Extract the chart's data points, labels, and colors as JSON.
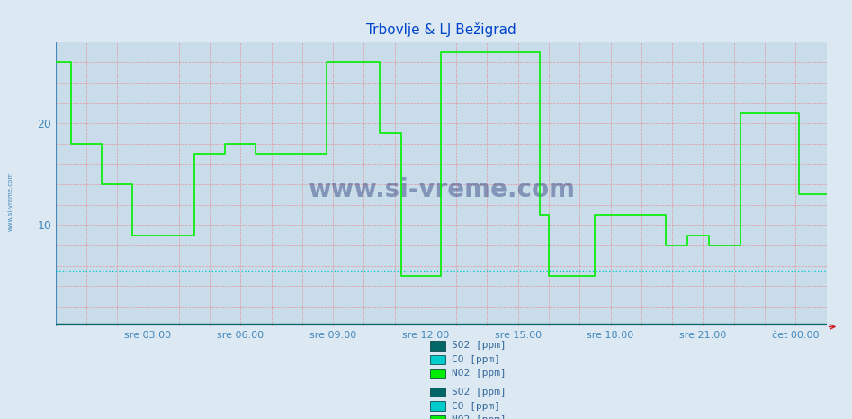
{
  "title": "Trbovlje & LJ Bežigrad",
  "title_color": "#0044cc",
  "title_fontsize": 11,
  "background_color": "#dce8f2",
  "plot_bg_color": "#c8dcea",
  "grid_color": "#ff5555",
  "ylim": [
    0,
    28
  ],
  "yticks": [
    10,
    20
  ],
  "tick_color": "#4488bb",
  "xtick_labels": [
    "sre 03:00",
    "sre 06:00",
    "sre 09:00",
    "sre 12:00",
    "sre 15:00",
    "sre 18:00",
    "sre 21:00",
    "čet 00:00"
  ],
  "xtick_positions": [
    3,
    6,
    9,
    12,
    15,
    18,
    21,
    24
  ],
  "xlim": [
    0,
    25.0
  ],
  "no2_color": "#00ee00",
  "so2_color": "#006666",
  "co_color": "#00cccc",
  "no2_x": [
    0,
    0.5,
    0.5,
    1.5,
    1.5,
    2.5,
    2.5,
    4.5,
    4.5,
    5.5,
    5.5,
    6.5,
    6.5,
    7.5,
    7.5,
    8.8,
    8.8,
    10.5,
    10.5,
    11.2,
    11.2,
    12.5,
    12.5,
    15.7,
    15.7,
    16.0,
    16.0,
    17.0,
    17.0,
    17.5,
    17.5,
    19.0,
    19.0,
    19.8,
    19.8,
    20.5,
    20.5,
    21.2,
    21.2,
    22.2,
    22.2,
    23.5,
    23.5,
    24.1,
    24.1,
    25.0
  ],
  "no2_y": [
    26,
    26,
    18,
    18,
    14,
    14,
    9,
    9,
    17,
    17,
    18,
    18,
    17,
    17,
    17,
    17,
    26,
    26,
    19,
    19,
    5,
    5,
    27,
    27,
    11,
    11,
    5,
    5,
    5,
    5,
    11,
    11,
    11,
    11,
    8,
    8,
    9,
    9,
    8,
    8,
    21,
    21,
    21,
    21,
    13,
    13
  ],
  "co_y": 5.5,
  "so2_y": 0.3,
  "legend_color": "#336699",
  "legend_fontsize": 8,
  "legend_so2_color": "#006666",
  "legend_co_color": "#00cccc",
  "legend_no2_color": "#00ee00",
  "watermark": "www.si-vreme.com",
  "side_label": "www.si-vreme.com"
}
